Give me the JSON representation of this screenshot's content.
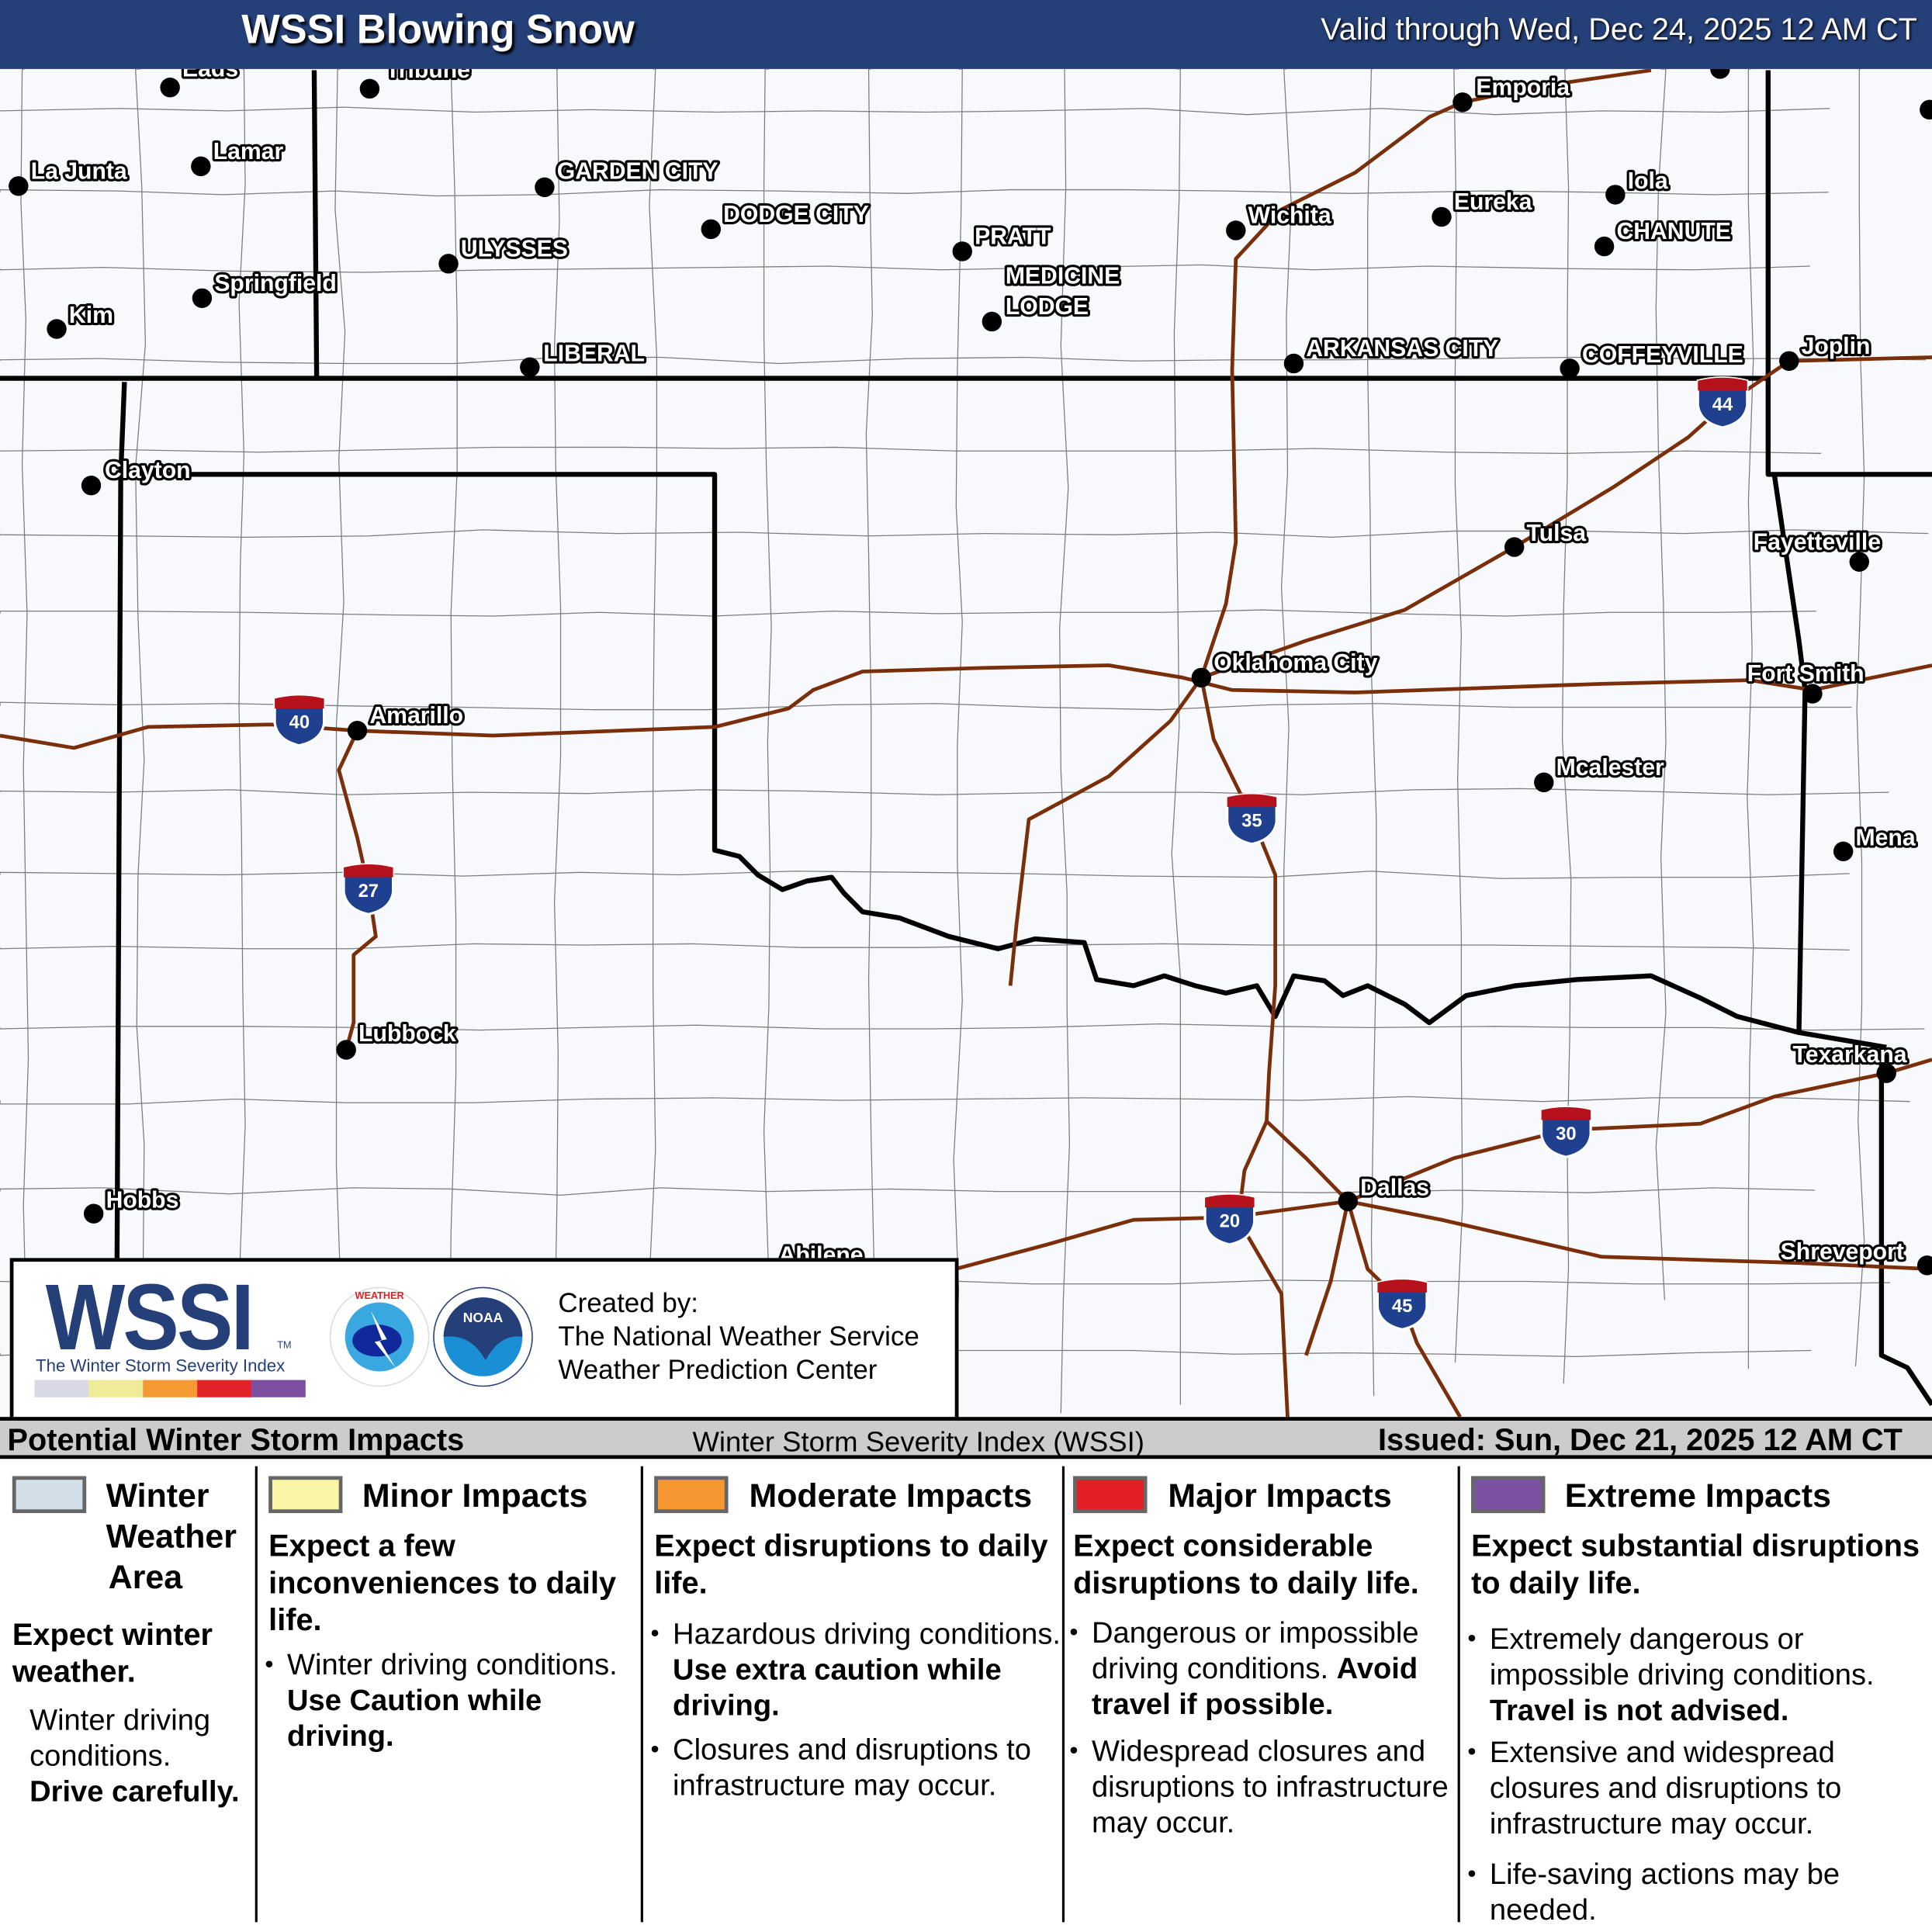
{
  "header": {
    "title": "WSSI Blowing Snow",
    "valid": "Valid through Wed, Dec 24, 2025 12 AM CT"
  },
  "map": {
    "cities": [
      "Eads",
      "Tribune",
      "La Junta",
      "Lamar",
      "GARDEN CITY",
      "DODGE CITY",
      "ULYSSES",
      "Springfield",
      "Kim",
      "LIBERAL",
      "PRATT",
      "MEDICINE",
      "LODGE",
      "Wichita",
      "Emporia",
      "Eureka",
      "Iola",
      "CHANUTE",
      "ARKANSAS CITY",
      "COFFEYVILLE",
      "Joplin",
      "Clayton",
      "Tulsa",
      "Fayetteville",
      "Oklahoma City",
      "Fort Smith",
      "Amarillo",
      "Mcalester",
      "Mena",
      "Lubbock",
      "Texarkana",
      "Hobbs",
      "Dallas",
      "Abilene",
      "Shreveport"
    ],
    "interstates": [
      "40",
      "27",
      "44",
      "35",
      "30",
      "20",
      "45"
    ],
    "colors": {
      "background": "#f7f9fc",
      "state_border": "#000000",
      "highway": "#7a2e0a",
      "shield_blue": "#1f3f8f",
      "shield_red": "#b5121b"
    }
  },
  "logo": {
    "wssi": "WSSI",
    "tm": "TM",
    "subtitle": "The Winter Storm Severity Index",
    "scale_colors": [
      "#d9d9e6",
      "#eeec96",
      "#f59a33",
      "#e2232a",
      "#7c4fa0"
    ],
    "created_by": "Created by:",
    "org1": "The National Weather Service",
    "org2": "Weather Prediction Center",
    "nws_logo_text": "NATIONAL WEATHER SERVICE",
    "noaa_logo_text": "NOAA"
  },
  "legend": {
    "bar_title": "Potential Winter Storm Impacts",
    "bar_center": "Winter Storm Severity Index (WSSI)",
    "issued": "Issued: Sun, Dec 21, 2025 12 AM CT",
    "categories": [
      {
        "name_lines": [
          "Winter",
          "Weather",
          "Area"
        ],
        "color": "#d3dfe6",
        "expect": "Expect winter weather.",
        "bullets": [
          {
            "text": "Winter driving conditions.",
            "bold": "Drive carefully."
          }
        ]
      },
      {
        "name": "Minor Impacts",
        "color": "#f9f6a5",
        "expect": "Expect a few inconveniences to daily life.",
        "bullets": [
          {
            "text": "Winter driving conditions.",
            "bold": "Use Caution while driving."
          }
        ]
      },
      {
        "name": "Moderate Impacts",
        "color": "#f7972f",
        "expect": "Expect disruptions to daily life.",
        "bullets": [
          {
            "text": "Hazardous driving conditions.",
            "bold": "Use extra caution while driving."
          },
          {
            "text": "Closures and disruptions to infrastructure may occur.",
            "bold": ""
          }
        ]
      },
      {
        "name": "Major Impacts",
        "color": "#e31e25",
        "expect": "Expect considerable disruptions to daily life.",
        "bullets": [
          {
            "text": "Dangerous or impossible driving conditions.",
            "bold": "Avoid travel if possible."
          },
          {
            "text": "Widespread closures and disruptions to infrastructure may occur.",
            "bold": ""
          }
        ]
      },
      {
        "name": "Extreme Impacts",
        "color": "#7b52a3",
        "expect": "Expect substantial disruptions to daily life.",
        "bullets": [
          {
            "text": "Extremely dangerous or impossible driving conditions.",
            "bold": "Travel is not advised."
          },
          {
            "text": "Extensive and widespread closures and disruptions to infrastructure may occur.",
            "bold": ""
          },
          {
            "text": "Life-saving actions may be needed.",
            "bold": ""
          }
        ]
      }
    ]
  }
}
